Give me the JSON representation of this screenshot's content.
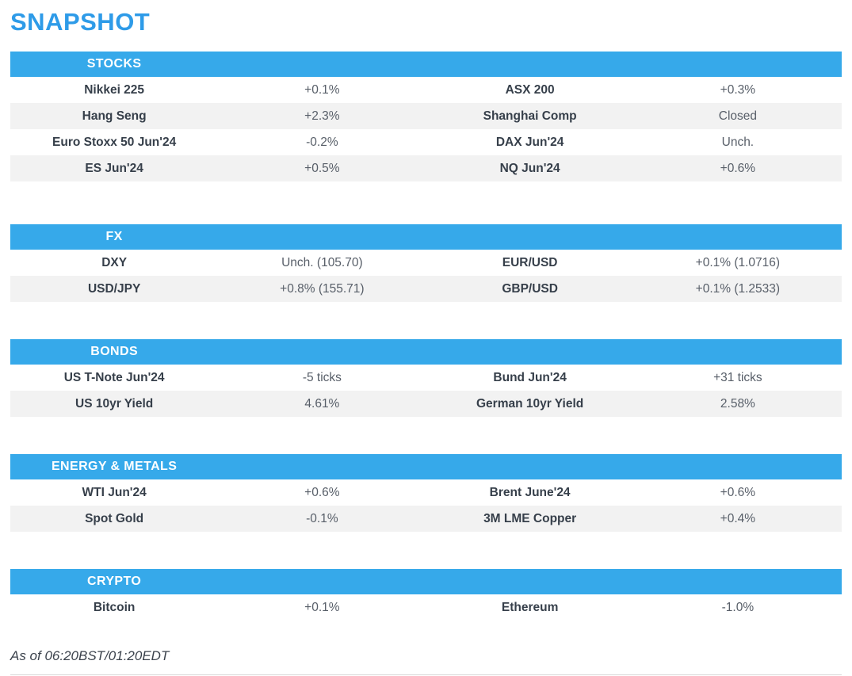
{
  "page": {
    "title": "SNAPSHOT",
    "footer": "As of 06:20BST/01:20EDT",
    "colors": {
      "title_blue": "#2E9BE8",
      "section_bar_blue": "#36A9EA",
      "stripe_gray": "#F2F2F2",
      "label_text": "#363F4A",
      "value_text": "#575E68"
    }
  },
  "sections": [
    {
      "header": "STOCKS",
      "rows": [
        {
          "l1": "Nikkei 225",
          "v1": "+0.1%",
          "l2": "ASX 200",
          "v2": "+0.3%"
        },
        {
          "l1": "Hang Seng",
          "v1": "+2.3%",
          "l2": "Shanghai Comp",
          "v2": "Closed"
        },
        {
          "l1": "Euro Stoxx 50 Jun'24",
          "v1": "-0.2%",
          "l2": "DAX Jun'24",
          "v2": "Unch."
        },
        {
          "l1": "ES Jun'24",
          "v1": "+0.5%",
          "l2": "NQ Jun'24",
          "v2": "+0.6%"
        }
      ]
    },
    {
      "header": "FX",
      "rows": [
        {
          "l1": "DXY",
          "v1": "Unch. (105.70)",
          "l2": "EUR/USD",
          "v2": "+0.1% (1.0716)"
        },
        {
          "l1": "USD/JPY",
          "v1": "+0.8% (155.71)",
          "l2": "GBP/USD",
          "v2": "+0.1% (1.2533)"
        }
      ]
    },
    {
      "header": "BONDS",
      "rows": [
        {
          "l1": "US T-Note Jun'24",
          "v1": "-5 ticks",
          "l2": "Bund Jun'24",
          "v2": "+31 ticks"
        },
        {
          "l1": "US 10yr Yield",
          "v1": "4.61%",
          "l2": "German 10yr Yield",
          "v2": "2.58%"
        }
      ]
    },
    {
      "header": "ENERGY & METALS",
      "rows": [
        {
          "l1": "WTI Jun'24",
          "v1": "+0.6%",
          "l2": "Brent June'24",
          "v2": "+0.6%"
        },
        {
          "l1": "Spot Gold",
          "v1": "-0.1%",
          "l2": "3M LME Copper",
          "v2": "+0.4%"
        }
      ]
    },
    {
      "header": "CRYPTO",
      "rows": [
        {
          "l1": "Bitcoin",
          "v1": "+0.1%",
          "l2": "Ethereum",
          "v2": "-1.0%"
        }
      ]
    }
  ]
}
